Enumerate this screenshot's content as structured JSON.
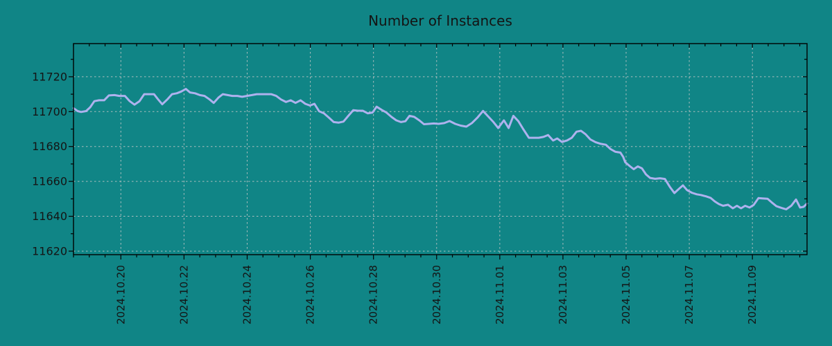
{
  "chart_data": {
    "type": "line",
    "title": "Number of Instances",
    "xlabel": "",
    "ylabel": "",
    "grid": "dotted",
    "legend": "none",
    "x_axis": {
      "tick_labels": [
        "2024.10.20",
        "2024.10.22",
        "2024.10.24",
        "2024.10.26",
        "2024.10.28",
        "2024.10.30",
        "2024.11.01",
        "2024.11.03",
        "2024.11.05",
        "2024.11.07",
        "2024.11.09"
      ],
      "tick_positions_days": [
        1.5,
        3.5,
        5.5,
        7.5,
        9.5,
        11.5,
        13.5,
        15.5,
        17.5,
        19.5,
        21.5
      ],
      "minor_tick_step_days": 0.5,
      "range_days": [
        0,
        23.23
      ]
    },
    "y_axis": {
      "tick_values": [
        11620,
        11640,
        11660,
        11680,
        11700,
        11720
      ],
      "minor_tick_step": 10,
      "range": [
        11618,
        11739
      ]
    },
    "colors": {
      "background": "#108586",
      "line": "#aeb2ee",
      "grid": "#c8c8c8",
      "axis": "#000000",
      "text": "#141414"
    },
    "series": [
      {
        "name": "Number of Instances",
        "points": [
          [
            0.0,
            11702
          ],
          [
            0.13,
            11700.3
          ],
          [
            0.24,
            11699.8
          ],
          [
            0.4,
            11700.3
          ],
          [
            0.53,
            11702.5
          ],
          [
            0.66,
            11706
          ],
          [
            0.81,
            11706.5
          ],
          [
            0.97,
            11706.5
          ],
          [
            1.12,
            11709.3
          ],
          [
            1.3,
            11709.5
          ],
          [
            1.45,
            11709
          ],
          [
            1.63,
            11709
          ],
          [
            1.78,
            11706
          ],
          [
            1.93,
            11704
          ],
          [
            2.09,
            11706
          ],
          [
            2.24,
            11710
          ],
          [
            2.42,
            11710
          ],
          [
            2.55,
            11710
          ],
          [
            2.68,
            11707
          ],
          [
            2.81,
            11704.2
          ],
          [
            2.97,
            11707
          ],
          [
            3.12,
            11710
          ],
          [
            3.27,
            11710.5
          ],
          [
            3.41,
            11711.5
          ],
          [
            3.56,
            11713
          ],
          [
            3.69,
            11711
          ],
          [
            3.85,
            11710.5
          ],
          [
            4.0,
            11709.5
          ],
          [
            4.15,
            11709
          ],
          [
            4.31,
            11707
          ],
          [
            4.44,
            11705
          ],
          [
            4.59,
            11708
          ],
          [
            4.73,
            11710
          ],
          [
            4.88,
            11709.5
          ],
          [
            5.03,
            11709
          ],
          [
            5.19,
            11709
          ],
          [
            5.34,
            11708.5
          ],
          [
            5.49,
            11709
          ],
          [
            5.65,
            11709.5
          ],
          [
            5.8,
            11710
          ],
          [
            5.96,
            11710
          ],
          [
            6.11,
            11710
          ],
          [
            6.26,
            11710
          ],
          [
            6.42,
            11709
          ],
          [
            6.57,
            11707
          ],
          [
            6.73,
            11705.5
          ],
          [
            6.88,
            11706.5
          ],
          [
            7.03,
            11705
          ],
          [
            7.19,
            11706.5
          ],
          [
            7.34,
            11704.5
          ],
          [
            7.49,
            11703.5
          ],
          [
            7.63,
            11704.5
          ],
          [
            7.78,
            11700.2
          ],
          [
            7.93,
            11699
          ],
          [
            8.09,
            11696.5
          ],
          [
            8.24,
            11694
          ],
          [
            8.4,
            11693.7
          ],
          [
            8.55,
            11694.3
          ],
          [
            8.7,
            11697.5
          ],
          [
            8.86,
            11700.8
          ],
          [
            9.01,
            11700.5
          ],
          [
            9.16,
            11700.5
          ],
          [
            9.32,
            11699
          ],
          [
            9.47,
            11699.5
          ],
          [
            9.6,
            11702.8
          ],
          [
            9.76,
            11701
          ],
          [
            9.91,
            11699.5
          ],
          [
            10.07,
            11697
          ],
          [
            10.22,
            11695
          ],
          [
            10.37,
            11694
          ],
          [
            10.51,
            11694.5
          ],
          [
            10.64,
            11697.6
          ],
          [
            10.79,
            11697
          ],
          [
            10.95,
            11695
          ],
          [
            11.1,
            11692.8
          ],
          [
            11.25,
            11693
          ],
          [
            11.41,
            11693.2
          ],
          [
            11.56,
            11693
          ],
          [
            11.74,
            11693.4
          ],
          [
            11.91,
            11694.6
          ],
          [
            12.09,
            11693
          ],
          [
            12.26,
            11692
          ],
          [
            12.44,
            11691.4
          ],
          [
            12.62,
            11693.5
          ],
          [
            12.79,
            11696.5
          ],
          [
            12.97,
            11700.4
          ],
          [
            13.12,
            11697.5
          ],
          [
            13.3,
            11694
          ],
          [
            13.45,
            11690.6
          ],
          [
            13.63,
            11695
          ],
          [
            13.78,
            11690.6
          ],
          [
            13.93,
            11697.6
          ],
          [
            14.09,
            11694.5
          ],
          [
            14.24,
            11690
          ],
          [
            14.42,
            11685
          ],
          [
            14.57,
            11685
          ],
          [
            14.73,
            11685
          ],
          [
            14.88,
            11685.5
          ],
          [
            15.03,
            11686.6
          ],
          [
            15.19,
            11683.4
          ],
          [
            15.32,
            11684.6
          ],
          [
            15.47,
            11682.6
          ],
          [
            15.63,
            11683.5
          ],
          [
            15.78,
            11685
          ],
          [
            15.93,
            11688.5
          ],
          [
            16.07,
            11689
          ],
          [
            16.22,
            11687
          ],
          [
            16.37,
            11684
          ],
          [
            16.53,
            11682.5
          ],
          [
            16.7,
            11681.5
          ],
          [
            16.86,
            11681
          ],
          [
            17.01,
            11678.5
          ],
          [
            17.16,
            11677
          ],
          [
            17.32,
            11676.5
          ],
          [
            17.41,
            11674
          ],
          [
            17.47,
            11671
          ],
          [
            17.6,
            11669
          ],
          [
            17.74,
            11667
          ],
          [
            17.87,
            11668.6
          ],
          [
            18.0,
            11667.5
          ],
          [
            18.13,
            11664
          ],
          [
            18.26,
            11662
          ],
          [
            18.42,
            11661.5
          ],
          [
            18.57,
            11661.8
          ],
          [
            18.73,
            11661.4
          ],
          [
            18.88,
            11657
          ],
          [
            19.03,
            11653.3
          ],
          [
            19.16,
            11655.5
          ],
          [
            19.3,
            11657.7
          ],
          [
            19.43,
            11655
          ],
          [
            19.58,
            11653.5
          ],
          [
            19.74,
            11652.6
          ],
          [
            19.87,
            11652.2
          ],
          [
            20.02,
            11651.5
          ],
          [
            20.18,
            11650.5
          ],
          [
            20.31,
            11648.5
          ],
          [
            20.44,
            11647
          ],
          [
            20.57,
            11646
          ],
          [
            20.73,
            11646.6
          ],
          [
            20.88,
            11644.6
          ],
          [
            21.01,
            11646
          ],
          [
            21.14,
            11644.6
          ],
          [
            21.27,
            11646
          ],
          [
            21.41,
            11645
          ],
          [
            21.54,
            11646.5
          ],
          [
            21.69,
            11650.4
          ],
          [
            21.82,
            11650.2
          ],
          [
            21.98,
            11650
          ],
          [
            22.11,
            11648
          ],
          [
            22.26,
            11645.8
          ],
          [
            22.42,
            11644.8
          ],
          [
            22.57,
            11644
          ],
          [
            22.73,
            11646
          ],
          [
            22.88,
            11649.6
          ],
          [
            23.01,
            11645
          ],
          [
            23.12,
            11645.4
          ],
          [
            23.23,
            11647.3
          ]
        ]
      }
    ]
  }
}
